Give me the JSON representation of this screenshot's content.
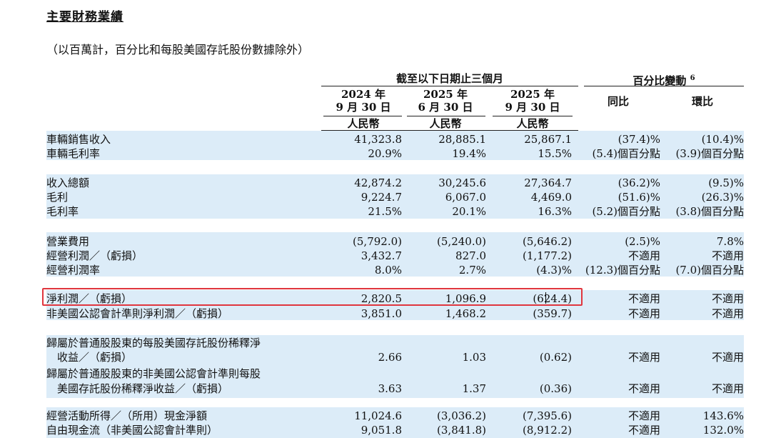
{
  "title": "主要財務業績",
  "subtitle": "（以百萬計，百分比和每股美國存託股份數據除外）",
  "header": {
    "group1": "截至以下日期止三個月",
    "group2": "百分比變動",
    "group2_sup": "6",
    "col1": [
      "2024 年",
      "9 月 30 日",
      "人民幣"
    ],
    "col2": [
      "2025 年",
      "6 月 30 日",
      "人民幣"
    ],
    "col3": [
      "2025 年",
      "9 月 30 日",
      "人民幣"
    ],
    "yoy": "同比",
    "qoq": "環比"
  },
  "rows": [
    {
      "label": "車輛銷售收入",
      "v1": "41,323.8",
      "v2": "28,885.1",
      "v3": "25,867.1",
      "yoy": "(37.4)%",
      "qoq": "(10.4)%"
    },
    {
      "label": "車輛毛利率",
      "v1": "20.9%",
      "v2": "19.4%",
      "v3": "15.5%",
      "yoy": "(5.4)個百分點",
      "qoq": "(3.9)個百分點"
    },
    {
      "label": "收入總額",
      "v1": "42,874.2",
      "v2": "30,245.6",
      "v3": "27,364.7",
      "yoy": "(36.2)%",
      "qoq": "(9.5)%"
    },
    {
      "label": "毛利",
      "v1": "9,224.7",
      "v2": "6,067.0",
      "v3": "4,469.0",
      "yoy": "(51.6)%",
      "qoq": "(26.3)%"
    },
    {
      "label": "毛利率",
      "v1": "21.5%",
      "v2": "20.1%",
      "v3": "16.3%",
      "yoy": "(5.2)個百分點",
      "qoq": "(3.8)個百分點"
    },
    {
      "label": "營業費用",
      "v1": "(5,792.0)",
      "v2": "(5,240.0)",
      "v3": "(5,646.2)",
      "yoy": "(2.5)%",
      "qoq": "7.8%"
    },
    {
      "label": "經營利潤／（虧損）",
      "v1": "3,432.7",
      "v2": "827.0",
      "v3": "(1,177.2)",
      "yoy": "不適用",
      "qoq": "不適用"
    },
    {
      "label": "經營利潤率",
      "v1": "8.0%",
      "v2": "2.7%",
      "v3": "(4.3)%",
      "yoy": "(12.3)個百分點",
      "qoq": "(7.0)個百分點"
    },
    {
      "label": "淨利潤／（虧損）",
      "v1": "2,820.5",
      "v2": "1,096.9",
      "v3": "(624.4)",
      "yoy": "不適用",
      "qoq": "不適用"
    },
    {
      "label": "非美國公認會計準則淨利潤／（虧損）",
      "v1": "3,851.0",
      "v2": "1,468.2",
      "v3": "(359.7)",
      "yoy": "不適用",
      "qoq": "不適用"
    },
    {
      "label": "歸屬於普通股股東的每股美國存託股份稀釋淨",
      "label2": "收益／（虧損）",
      "v1": "2.66",
      "v2": "1.03",
      "v3": "(0.62)",
      "yoy": "不適用",
      "qoq": "不適用"
    },
    {
      "label": "歸屬於普通股股東的非美國公認會計準則每股",
      "label2": "美國存託股份稀釋淨收益／（虧損）",
      "v1": "3.63",
      "v2": "1.37",
      "v3": "(0.36)",
      "yoy": "不適用",
      "qoq": "不適用"
    },
    {
      "label": "經營活動所得／（所用）現金淨額",
      "v1": "11,024.6",
      "v2": "(3,036.2)",
      "v3": "(7,395.6)",
      "yoy": "不適用",
      "qoq": "143.6%"
    },
    {
      "label": "自由現金流（非美國公認會計準則）",
      "v1": "9,051.8",
      "v2": "(3,841.8)",
      "v3": "(8,912.2)",
      "yoy": "不適用",
      "qoq": "132.0%"
    }
  ]
}
